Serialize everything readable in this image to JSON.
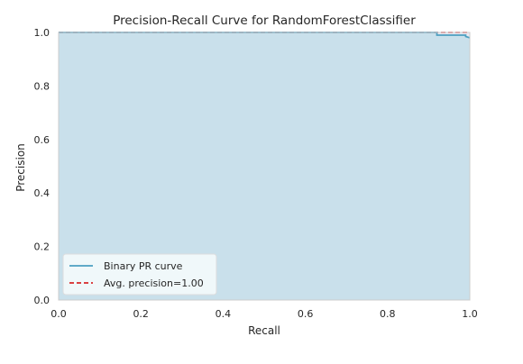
{
  "chart_data": {
    "type": "area",
    "title": "Precision-Recall Curve for RandomForestClassifier",
    "xlabel": "Recall",
    "ylabel": "Precision",
    "xlim": [
      0.0,
      1.0
    ],
    "ylim": [
      0.0,
      1.0
    ],
    "xticks": [
      "0.0",
      "0.2",
      "0.4",
      "0.6",
      "0.8",
      "1.0"
    ],
    "yticks": [
      "0.0",
      "0.2",
      "0.4",
      "0.6",
      "0.8",
      "1.0"
    ],
    "grid": false,
    "legend_position": "lower-left",
    "series": [
      {
        "name": "Binary PR curve",
        "kind": "step-line-with-fill",
        "color": "#4c9fc0",
        "fill_color": "#c9e0eb",
        "x": [
          0.0,
          0.92,
          0.92,
          0.99,
          0.99,
          1.0
        ],
        "y": [
          1.0,
          1.0,
          0.99,
          0.99,
          0.985,
          0.98
        ]
      },
      {
        "name": "Avg. precision=1.00",
        "kind": "horizontal-dashed",
        "color": "#d62728",
        "y": 1.0
      }
    ]
  }
}
